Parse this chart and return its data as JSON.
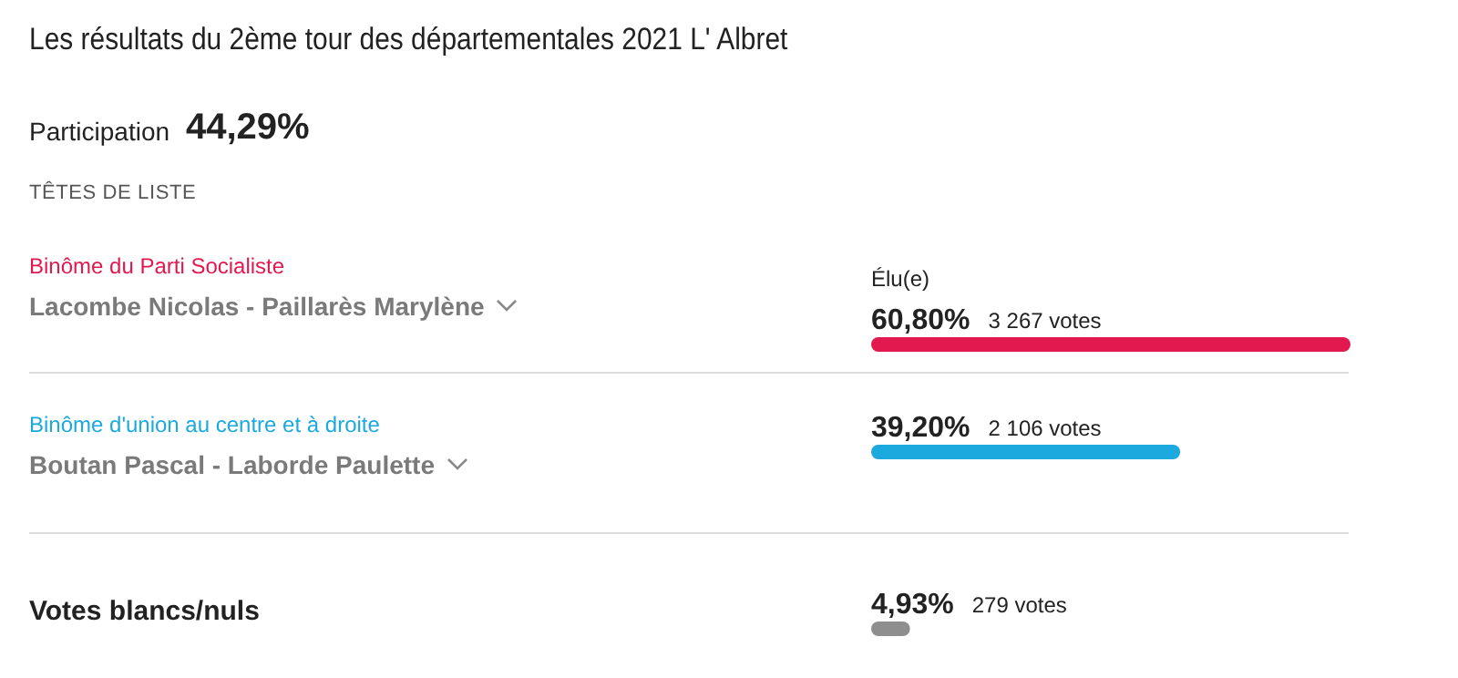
{
  "chart_data": {
    "type": "bar",
    "orientation": "horizontal",
    "title": "Les résultats du 2ème tour des départementales 2021 L' Albret",
    "categories": [
      "Lacombe Nicolas - Paillarès Marylène",
      "Boutan Pascal - Laborde Paulette",
      "Votes blancs/nuls"
    ],
    "values": [
      60.8,
      39.2,
      4.93
    ],
    "colors": [
      "#e2194e",
      "#1ba9de",
      "#8e8e8e"
    ],
    "value_labels": [
      "60,80%",
      "39,20%",
      "4,93%"
    ],
    "tick_labels": false,
    "annotations": [
      "Participation",
      "44,29%",
      "TÊTES DE LISTE",
      "Binôme du Parti Socialiste",
      "Élu(e)",
      "3 267 votes",
      "Binôme d'union au centre et à droite",
      "2 106 votes",
      "279 votes"
    ]
  }
}
